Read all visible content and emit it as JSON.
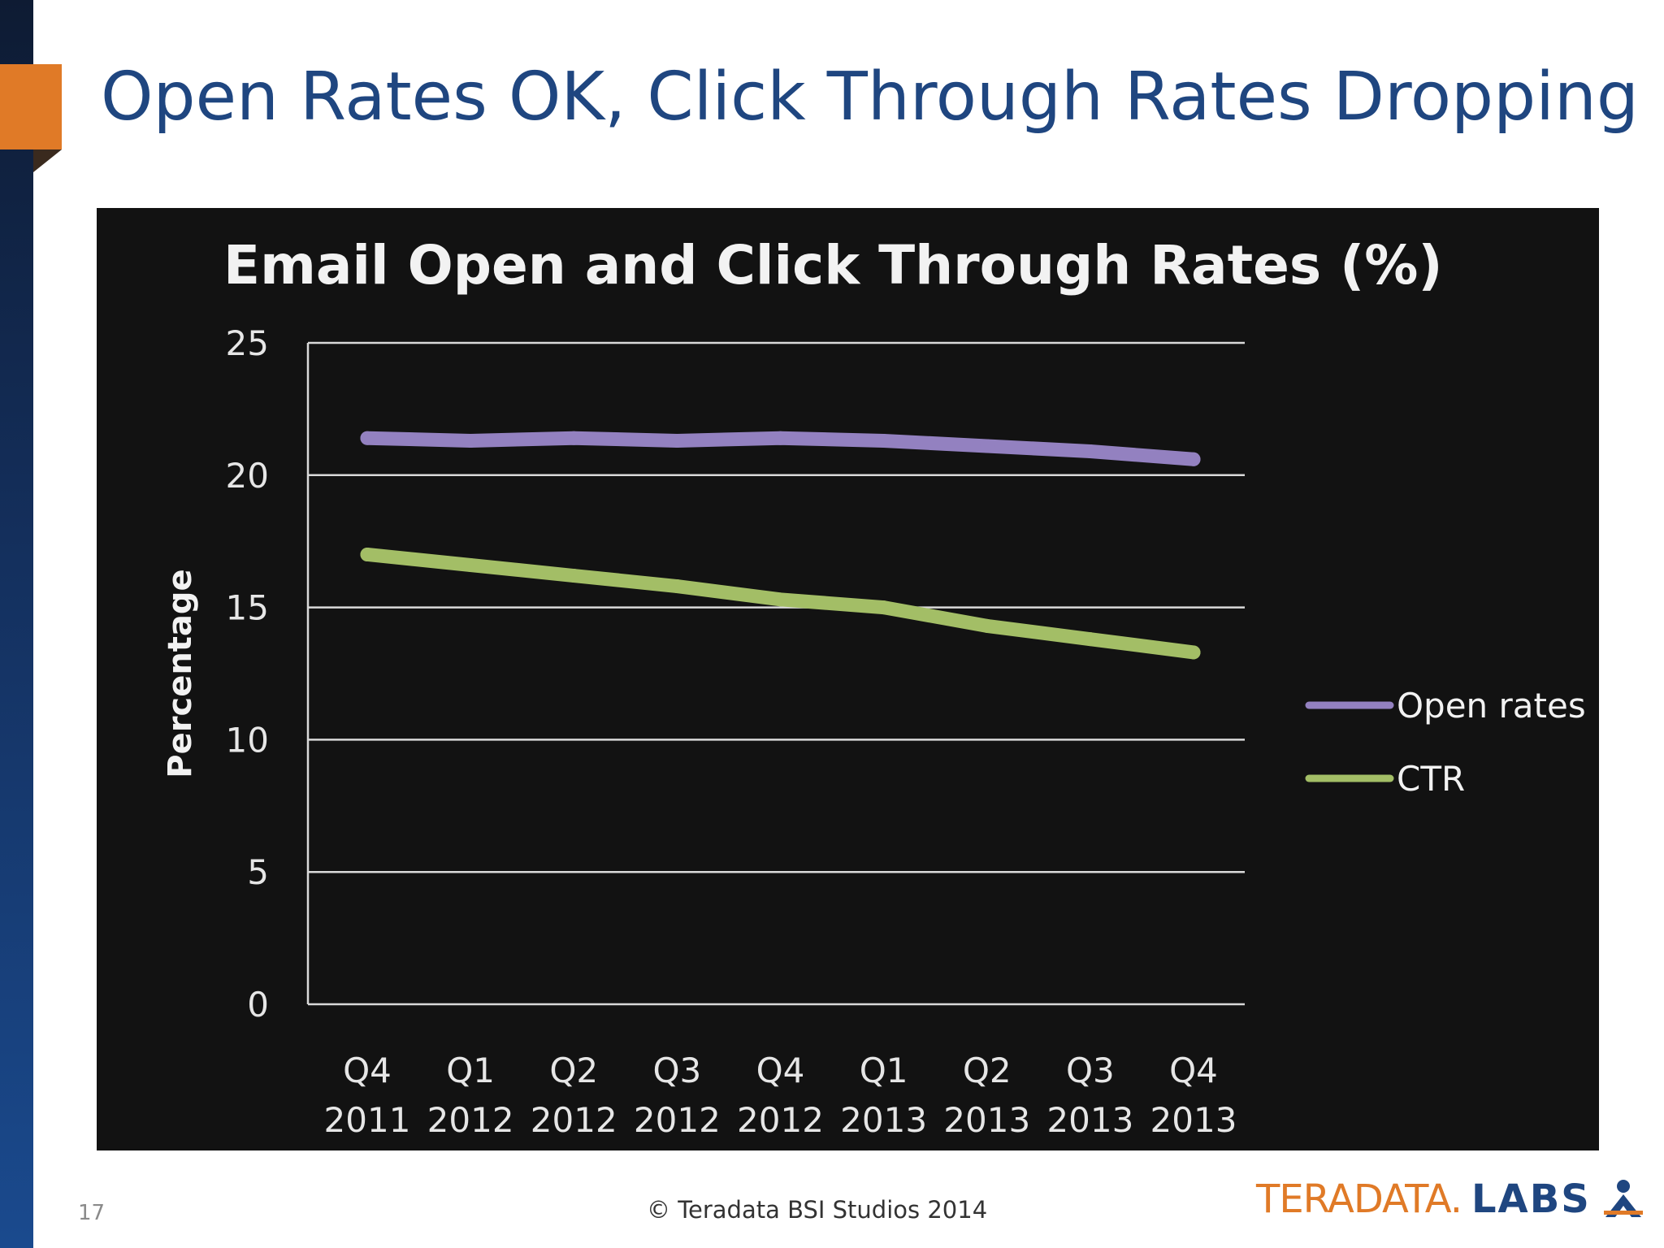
{
  "slide": {
    "title": "Open Rates OK, Click Through Rates Dropping",
    "page_number": "17",
    "copyright": "© Teradata BSI Studios 2014",
    "logo_text": "TERADATA.",
    "logo_labs": "LABS"
  },
  "colors": {
    "title": "#1f4680",
    "accent": "#e07a27",
    "panel": "#121212",
    "open_rates": "#9381c0",
    "ctr": "#a3be66"
  },
  "chart_data": {
    "type": "line",
    "title": "Email Open and Click Through Rates (%)",
    "xlabel": "",
    "ylabel": "Percentage",
    "ylim": [
      0,
      25
    ],
    "yticks": [
      0,
      5,
      10,
      15,
      20,
      25
    ],
    "grid": true,
    "legend_position": "right",
    "categories": [
      [
        "Q4",
        "2011"
      ],
      [
        "Q1",
        "2012"
      ],
      [
        "Q2",
        "2012"
      ],
      [
        "Q3",
        "2012"
      ],
      [
        "Q4",
        "2012"
      ],
      [
        "Q1",
        "2013"
      ],
      [
        "Q2",
        "2013"
      ],
      [
        "Q3",
        "2013"
      ],
      [
        "Q4",
        "2013"
      ]
    ],
    "series": [
      {
        "name": "Open rates",
        "color": "#9381c0",
        "values": [
          21.4,
          21.3,
          21.4,
          21.3,
          21.4,
          21.3,
          21.1,
          20.9,
          20.6
        ]
      },
      {
        "name": "CTR",
        "color": "#a3be66",
        "values": [
          17.0,
          16.6,
          16.2,
          15.8,
          15.3,
          15.0,
          14.3,
          13.8,
          13.3
        ]
      }
    ]
  }
}
